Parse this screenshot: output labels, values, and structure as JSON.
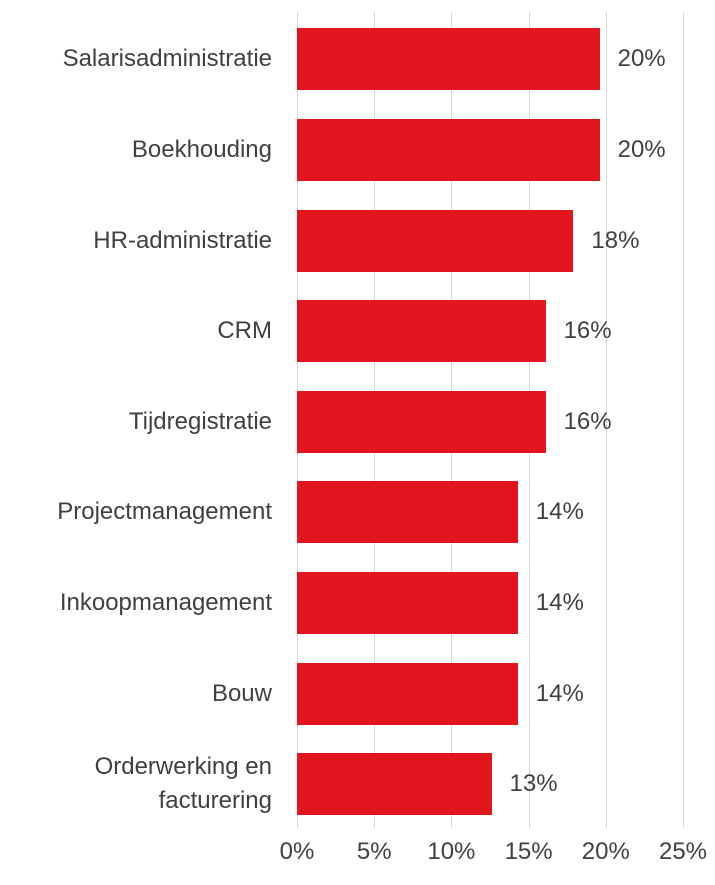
{
  "chart_data": {
    "type": "barh",
    "categories": [
      "Salarisadministratie",
      "Boekhouding",
      "HR-administratie",
      "CRM",
      "Tijdregistratie",
      "Projectmanagement",
      "Inkoopmanagement",
      "Bouw",
      "Orderwerking en facturering"
    ],
    "values": [
      19.6,
      19.6,
      17.9,
      16.1,
      16.1,
      14.3,
      14.3,
      14.3,
      12.6
    ],
    "value_labels": [
      "20%",
      "20%",
      "18%",
      "16%",
      "16%",
      "14%",
      "14%",
      "14%",
      "13%"
    ],
    "color": "#e3151f",
    "xlim": [
      0,
      25
    ],
    "xticks": [
      {
        "value": 0,
        "label": "0%"
      },
      {
        "value": 5,
        "label": "5%"
      },
      {
        "value": 10,
        "label": "10%"
      },
      {
        "value": 15,
        "label": "15%"
      },
      {
        "value": 20,
        "label": "20%"
      },
      {
        "value": 25,
        "label": "25%"
      }
    ],
    "grid": true
  }
}
